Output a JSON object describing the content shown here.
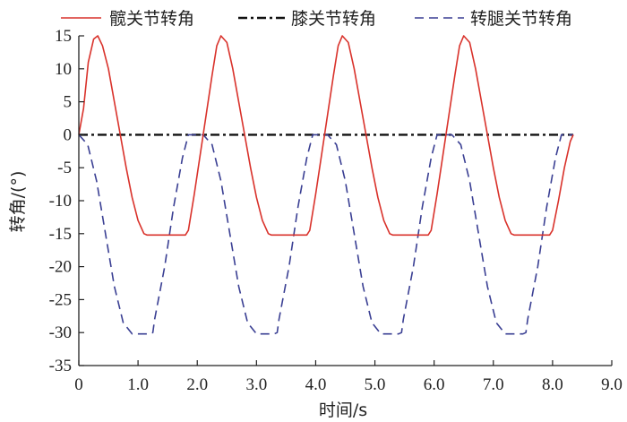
{
  "chart_data": {
    "type": "line",
    "title": "",
    "xlabel": "时间/s",
    "ylabel": "转角/(°)",
    "xlim": [
      0,
      9.0
    ],
    "ylim": [
      -35,
      15
    ],
    "xticks": [
      0,
      1.0,
      2.0,
      3.0,
      4.0,
      5.0,
      6.0,
      7.0,
      8.0,
      9.0
    ],
    "xtick_labels": [
      "0",
      "1.0",
      "2.0",
      "3.0",
      "4.0",
      "5.0",
      "6.0",
      "7.0",
      "8.0",
      "9.0"
    ],
    "yticks": [
      15,
      10,
      5,
      0,
      -5,
      -10,
      -15,
      -20,
      -25,
      -30,
      -35
    ],
    "ytick_labels": [
      "15",
      "10",
      "5",
      "0",
      "-5",
      "-10",
      "-15",
      "-20",
      "-25",
      "-30",
      "-35"
    ],
    "grid": false,
    "legend_position": "top",
    "series": [
      {
        "name": "髋关节转角",
        "color": "#d9322b",
        "style": "solid",
        "x": [
          0,
          0.08,
          0.16,
          0.25,
          0.32,
          0.4,
          0.5,
          0.6,
          0.7,
          0.8,
          0.9,
          1.0,
          1.1,
          1.15,
          1.8,
          1.85,
          1.95,
          2.05,
          2.15,
          2.25,
          2.33,
          2.4,
          2.5,
          2.6,
          2.7,
          2.8,
          2.9,
          3.0,
          3.1,
          3.2,
          3.25,
          3.85,
          3.9,
          4.0,
          4.1,
          4.2,
          4.3,
          4.38,
          4.45,
          4.55,
          4.65,
          4.75,
          4.85,
          4.95,
          5.05,
          5.15,
          5.25,
          5.3,
          5.9,
          5.95,
          6.05,
          6.15,
          6.25,
          6.35,
          6.43,
          6.5,
          6.6,
          6.7,
          6.8,
          6.9,
          7.0,
          7.1,
          7.2,
          7.3,
          7.35,
          7.95,
          8.0,
          8.1,
          8.2,
          8.3,
          8.35
        ],
        "y": [
          0,
          4,
          11,
          14.5,
          15,
          13.5,
          10,
          5,
          0,
          -5,
          -9.5,
          -13,
          -15,
          -15.2,
          -15.2,
          -14.5,
          -9,
          -3,
          3,
          9,
          13.5,
          15,
          14,
          10,
          5,
          0,
          -5,
          -9.5,
          -13,
          -15,
          -15.2,
          -15.2,
          -14.5,
          -9,
          -3,
          3,
          9,
          13.5,
          15,
          14,
          10,
          5,
          0,
          -5,
          -9.5,
          -13,
          -15,
          -15.2,
          -15.2,
          -14.5,
          -9,
          -3,
          3,
          9,
          13.5,
          15,
          14,
          10,
          5,
          0,
          -5,
          -9.5,
          -13,
          -15,
          -15.2,
          -15.2,
          -14.5,
          -10,
          -5,
          -1,
          0
        ]
      },
      {
        "name": "膝关节转角",
        "color": "#111111",
        "style": "dashdot",
        "x": [
          0,
          8.35
        ],
        "y": [
          0,
          0
        ]
      },
      {
        "name": "转腿关节转角",
        "color": "#3a3f93",
        "style": "dashed",
        "x": [
          0,
          0.15,
          0.3,
          0.45,
          0.6,
          0.75,
          0.9,
          1.05,
          1.2,
          1.25,
          1.28,
          1.45,
          1.6,
          1.75,
          1.85,
          1.95,
          2.1,
          2.25,
          2.4,
          2.55,
          2.7,
          2.85,
          3.0,
          3.15,
          3.3,
          3.35,
          3.38,
          3.55,
          3.7,
          3.85,
          3.95,
          4.05,
          4.2,
          4.35,
          4.5,
          4.65,
          4.8,
          4.95,
          5.1,
          5.25,
          5.4,
          5.45,
          5.48,
          5.65,
          5.8,
          5.95,
          6.05,
          6.15,
          6.3,
          6.45,
          6.6,
          6.75,
          6.9,
          7.05,
          7.2,
          7.35,
          7.5,
          7.55,
          7.58,
          7.75,
          7.9,
          8.05,
          8.15,
          8.3,
          8.35
        ],
        "y": [
          0,
          -1.5,
          -7,
          -15,
          -23,
          -28.5,
          -30.2,
          -30.2,
          -30.2,
          -30,
          -28,
          -20,
          -11,
          -3.5,
          0,
          0,
          0,
          -1.5,
          -7,
          -15,
          -23,
          -28.5,
          -30.2,
          -30.2,
          -30.2,
          -30,
          -28,
          -20,
          -11,
          -3.5,
          0,
          0,
          0,
          -1.5,
          -7,
          -15,
          -23,
          -28.5,
          -30.2,
          -30.2,
          -30.2,
          -30,
          -28,
          -20,
          -11,
          -3.5,
          0,
          0,
          0,
          -1.5,
          -7,
          -15,
          -23,
          -28.5,
          -30.2,
          -30.2,
          -30.2,
          -30,
          -28,
          -20,
          -11,
          -3.5,
          0,
          0,
          0
        ]
      }
    ]
  }
}
